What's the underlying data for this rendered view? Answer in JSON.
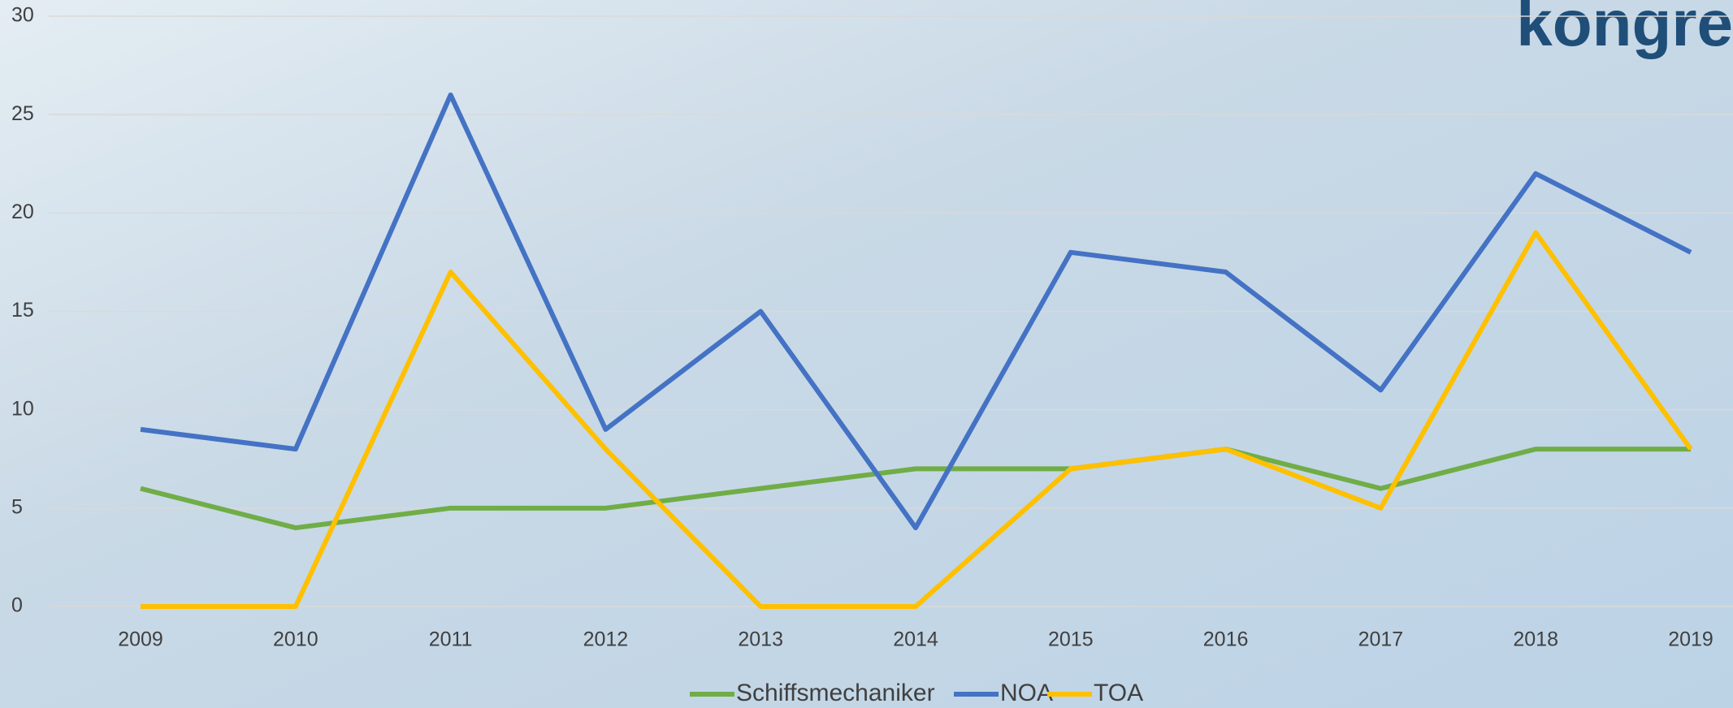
{
  "logo": "kongre",
  "chart_data": {
    "type": "line",
    "categories": [
      "2009",
      "2010",
      "2011",
      "2012",
      "2013",
      "2014",
      "2015",
      "2016",
      "2017",
      "2018",
      "2019"
    ],
    "series": [
      {
        "name": "Schiffsmechaniker",
        "color": "#70ad47",
        "values": [
          6,
          4,
          5,
          5,
          6,
          7,
          7,
          8,
          6,
          8,
          8
        ]
      },
      {
        "name": "NOA",
        "color": "#4472c4",
        "values": [
          9,
          8,
          26,
          9,
          15,
          4,
          18,
          17,
          11,
          22,
          18
        ]
      },
      {
        "name": "TOA",
        "color": "#ffc000",
        "values": [
          0,
          0,
          17,
          8,
          0,
          0,
          7,
          8,
          5,
          19,
          8
        ]
      }
    ],
    "ylim": [
      0,
      30
    ],
    "yticks": [
      0,
      5,
      10,
      15,
      20,
      25,
      30
    ],
    "grid": true,
    "legend": "bottom"
  }
}
